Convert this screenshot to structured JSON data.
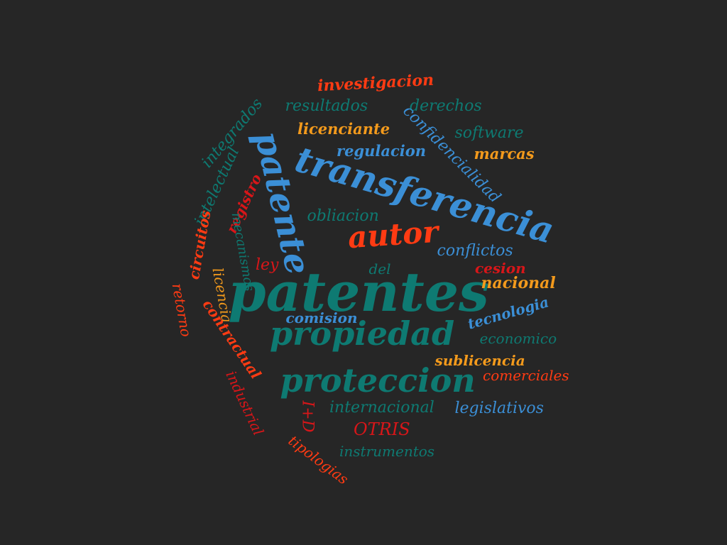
{
  "background": "#262626",
  "palette": {
    "teal": "#0e7a72",
    "blue": "#3b8fd6",
    "orange": "#f39a1c",
    "red_orange": "#ff3b13",
    "red": "#d81619"
  },
  "words": [
    {
      "text": "patentes",
      "color": "teal"
    },
    {
      "text": "transferencia",
      "color": "blue"
    },
    {
      "text": "patente",
      "color": "blue"
    },
    {
      "text": "propiedad",
      "color": "teal"
    },
    {
      "text": "proteccion",
      "color": "teal"
    },
    {
      "text": "autor",
      "color": "red_orange"
    },
    {
      "text": "investigacion",
      "color": "red_orange"
    },
    {
      "text": "resultados",
      "color": "teal"
    },
    {
      "text": "derechos",
      "color": "teal"
    },
    {
      "text": "integrados",
      "color": "teal"
    },
    {
      "text": "licenciante",
      "color": "orange"
    },
    {
      "text": "confidencialidad",
      "color": "blue"
    },
    {
      "text": "software",
      "color": "teal"
    },
    {
      "text": "regulacion",
      "color": "blue"
    },
    {
      "text": "marcas",
      "color": "orange"
    },
    {
      "text": "intelectual",
      "color": "teal"
    },
    {
      "text": "registro",
      "color": "red"
    },
    {
      "text": "obliacion",
      "color": "teal"
    },
    {
      "text": "circuitos",
      "color": "red_orange"
    },
    {
      "text": "mecanismos",
      "color": "teal"
    },
    {
      "text": "ley",
      "color": "red"
    },
    {
      "text": "conflictos",
      "color": "blue"
    },
    {
      "text": "del",
      "color": "teal"
    },
    {
      "text": "cesion",
      "color": "red"
    },
    {
      "text": "nacional",
      "color": "orange"
    },
    {
      "text": "licencia",
      "color": "orange"
    },
    {
      "text": "retorno",
      "color": "red_orange"
    },
    {
      "text": "comision",
      "color": "blue"
    },
    {
      "text": "tecnologia",
      "color": "blue"
    },
    {
      "text": "economico",
      "color": "teal"
    },
    {
      "text": "contractual",
      "color": "red_orange"
    },
    {
      "text": "sublicencia",
      "color": "orange"
    },
    {
      "text": "comerciales",
      "color": "red_orange"
    },
    {
      "text": "industrial",
      "color": "red"
    },
    {
      "text": "I+D",
      "color": "red"
    },
    {
      "text": "internacional",
      "color": "teal"
    },
    {
      "text": "legislativos",
      "color": "blue"
    },
    {
      "text": "OTRIS",
      "color": "red"
    },
    {
      "text": "tipologias",
      "color": "red_orange"
    },
    {
      "text": "instrumentos",
      "color": "teal"
    }
  ]
}
